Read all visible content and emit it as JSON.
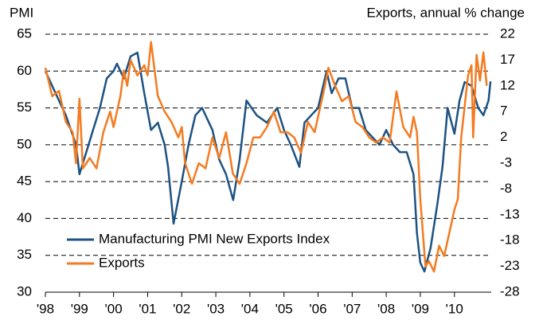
{
  "chart_data": {
    "type": "line",
    "left_axis_label": "PMI",
    "right_axis_label": "Exports, annual % change",
    "xlim": [
      1998,
      2011.08
    ],
    "xticks": [
      {
        "value": 1998,
        "label": "'98"
      },
      {
        "value": 1999,
        "label": "'99"
      },
      {
        "value": 2000,
        "label": "'00"
      },
      {
        "value": 2001,
        "label": "'01"
      },
      {
        "value": 2002,
        "label": "'02"
      },
      {
        "value": 2003,
        "label": "'03"
      },
      {
        "value": 2004,
        "label": "'04"
      },
      {
        "value": 2005,
        "label": "'05"
      },
      {
        "value": 2006,
        "label": "'06"
      },
      {
        "value": 2007,
        "label": "'07"
      },
      {
        "value": 2008,
        "label": "'08"
      },
      {
        "value": 2009,
        "label": "'09"
      },
      {
        "value": 2010,
        "label": "'10"
      }
    ],
    "ylim": [
      30,
      65
    ],
    "yticks": [
      30,
      35,
      40,
      45,
      50,
      55,
      60,
      65
    ],
    "y2lim": [
      -28,
      22
    ],
    "y2ticks": [
      -28,
      -23,
      -18,
      -13,
      -8,
      -3,
      2,
      7,
      12,
      17,
      22
    ],
    "grid": true,
    "legend": "lower left",
    "series": [
      {
        "name": "Manufacturing PMI New Exports Index",
        "color": "#1d5282",
        "x": [
          1998.0,
          1998.3,
          1998.6,
          1998.9,
          1999.0,
          1999.2,
          1999.4,
          1999.6,
          1999.8,
          2000.0,
          2000.1,
          2000.3,
          2000.5,
          2000.7,
          2000.9,
          2001.1,
          2001.3,
          2001.5,
          2001.6,
          2001.76,
          2002.0,
          2002.2,
          2002.4,
          2002.6,
          2002.9,
          2003.1,
          2003.3,
          2003.51,
          2003.7,
          2003.9,
          2004.2,
          2004.5,
          2004.8,
          2005.0,
          2005.2,
          2005.45,
          2005.6,
          2005.8,
          2006.0,
          2006.25,
          2006.4,
          2006.6,
          2006.8,
          2007.0,
          2007.2,
          2007.4,
          2007.6,
          2007.8,
          2008.0,
          2008.2,
          2008.4,
          2008.6,
          2008.8,
          2008.9,
          2009.0,
          2009.12,
          2009.3,
          2009.5,
          2009.65,
          2009.8,
          2010.0,
          2010.15,
          2010.3,
          2010.5,
          2010.7,
          2010.85,
          2011.0,
          2011.06
        ],
        "values": [
          60,
          57,
          54,
          50,
          46,
          49,
          52,
          55,
          59,
          60,
          61,
          59,
          62,
          62.5,
          57,
          52,
          53,
          50,
          47,
          39.3,
          45,
          50,
          54,
          55,
          52,
          48,
          46,
          42.5,
          48,
          56,
          54,
          53,
          55,
          52,
          50,
          47,
          53,
          54,
          55,
          60,
          57,
          59,
          59,
          55,
          55,
          52,
          51,
          50,
          52,
          50,
          49,
          49,
          46,
          38,
          34,
          32.8,
          36,
          42,
          47,
          55,
          51.5,
          56,
          58.5,
          58,
          55,
          54,
          56,
          58.6
        ]
      },
      {
        "name": "Exports",
        "color": "#f47b20",
        "axis": "y2",
        "x": [
          1998.0,
          1998.2,
          1998.4,
          1998.6,
          1998.8,
          1998.9,
          1999.0,
          1999.1,
          1999.3,
          1999.5,
          1999.7,
          1999.9,
          2000.0,
          2000.2,
          2000.3,
          2000.4,
          2000.5,
          2000.7,
          2000.9,
          2001.0,
          2001.1,
          2001.3,
          2001.5,
          2001.7,
          2001.9,
          2002.0,
          2002.1,
          2002.3,
          2002.5,
          2002.7,
          2002.9,
          2003.1,
          2003.3,
          2003.5,
          2003.7,
          2003.9,
          2004.1,
          2004.3,
          2004.5,
          2004.7,
          2004.9,
          2005.1,
          2005.3,
          2005.5,
          2005.7,
          2005.9,
          2006.0,
          2006.2,
          2006.3,
          2006.5,
          2006.7,
          2006.9,
          2007.1,
          2007.3,
          2007.5,
          2007.7,
          2007.9,
          2008.1,
          2008.3,
          2008.5,
          2008.7,
          2008.8,
          2008.9,
          2009.0,
          2009.15,
          2009.25,
          2009.4,
          2009.55,
          2009.7,
          2009.9,
          2010.0,
          2010.1,
          2010.2,
          2010.3,
          2010.4,
          2010.5,
          2010.55,
          2010.65,
          2010.75,
          2010.85,
          2010.95
        ],
        "values": [
          15.5,
          10,
          11,
          5,
          3,
          -3,
          9.5,
          -4,
          -2,
          -4,
          3,
          7,
          4,
          10,
          15,
          12,
          17,
          14,
          16,
          14,
          20.5,
          10,
          7,
          5,
          2,
          4,
          -3,
          -7,
          -3,
          -4,
          2,
          -2,
          3,
          -5,
          -7,
          -3,
          2,
          2,
          4,
          7,
          3,
          3,
          2,
          -1,
          5,
          3,
          6,
          12,
          15.5,
          12,
          9,
          10,
          5,
          4,
          2,
          1,
          2,
          1,
          10.9,
          4,
          2,
          6,
          3,
          -10,
          -23,
          -22,
          -24,
          -19,
          -21,
          -15,
          -12,
          -10,
          2,
          8,
          14,
          16,
          2,
          18,
          13,
          18.5,
          12
        ]
      }
    ]
  }
}
